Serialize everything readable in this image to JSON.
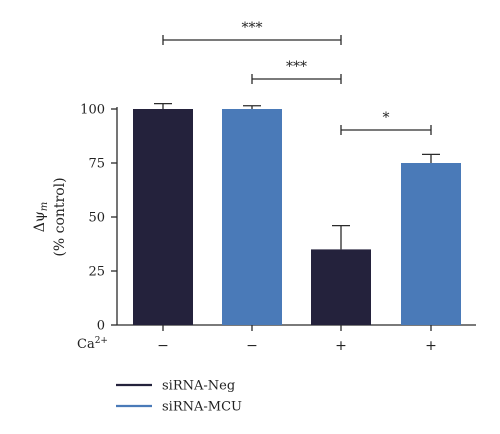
{
  "chart_data": {
    "type": "bar",
    "categories": [
      "siRNA-Neg, Ca2+ −",
      "siRNA-MCU, Ca2+ −",
      "siRNA-Neg, Ca2+ +",
      "siRNA-MCU, Ca2+ +"
    ],
    "values": [
      100,
      100,
      35,
      75
    ],
    "errors": [
      2.5,
      1.5,
      11,
      4
    ],
    "bar_series": [
      "siRNA-Neg",
      "siRNA-MCU",
      "siRNA-Neg",
      "siRNA-MCU"
    ],
    "series": [
      {
        "name": "siRNA-Neg",
        "color": "#24223c"
      },
      {
        "name": "siRNA-MCU",
        "color": "#4a7ab8"
      }
    ],
    "ylabel_lines": [
      "Δψm",
      "(% control)"
    ],
    "ylim": [
      0,
      100
    ],
    "yticks": [
      0,
      25,
      50,
      75,
      100
    ],
    "ca_label": "Ca2+",
    "ca_conditions": [
      "−",
      "−",
      "+",
      "+"
    ],
    "significance": [
      {
        "from": 0,
        "to": 2,
        "label": "***",
        "level": 3
      },
      {
        "from": 1,
        "to": 2,
        "label": "***",
        "level": 2
      },
      {
        "from": 2,
        "to": 3,
        "label": "*",
        "level": 1
      }
    ],
    "legend_position": "bottom-left",
    "grid": false
  }
}
